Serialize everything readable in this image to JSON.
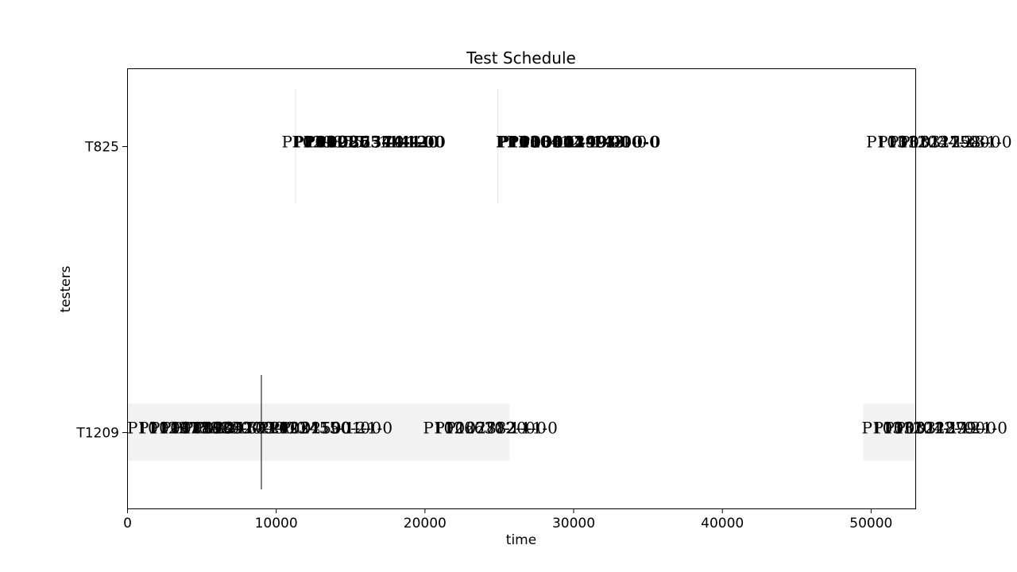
{
  "chart_data": {
    "type": "gantt",
    "title": "Test Schedule",
    "xlabel": "time",
    "ylabel": "testers",
    "xlim": [
      0,
      53000
    ],
    "x_ticks": [
      0,
      10000,
      20000,
      30000,
      40000,
      50000
    ],
    "x_tick_labels": [
      "0",
      "10000",
      "20000",
      "30000",
      "40000",
      "50000"
    ],
    "grid": false,
    "categories": [
      "T825",
      "T1209"
    ],
    "colors": {
      "bar_fill": "#f2f2f2",
      "marker": "#000000",
      "faint_marker": "#e6e6e6",
      "axes": "#000000"
    },
    "bars": [
      {
        "tester": "T1209",
        "start": 0,
        "end": 25700
      },
      {
        "tester": "T1209",
        "start": 49500,
        "end": 53000
      }
    ],
    "markers": [
      {
        "tester": "T1209",
        "x": 9000,
        "style": "solid"
      },
      {
        "tester": "T825",
        "x": 11300,
        "style": "faint"
      },
      {
        "tester": "T825",
        "x": 24900,
        "style": "faint"
      }
    ],
    "label_groups": [
      {
        "tester": "T825",
        "x": 10500,
        "bold": false,
        "labels": [
          "P10298551-1-0"
        ]
      },
      {
        "tester": "T825",
        "x": 11200,
        "bold": true,
        "labels": [
          "P1029875-1-1-0",
          "P1028654-4-2-0",
          "P1025374-1-0"
        ]
      },
      {
        "tester": "T825",
        "x": 24900,
        "bold": true,
        "labels": [
          "P1030412-1-0",
          "P1030419-4-0",
          "P1030449-3-0-0"
        ]
      },
      {
        "tester": "T825",
        "x": 25100,
        "bold": false,
        "labels": [
          "P1030412-493-1-0"
        ]
      },
      {
        "tester": "T825",
        "x": 49800,
        "bold": false,
        "labels": [
          "P1031203-1-0",
          "P1031244-2-0",
          "P1031275-3-0",
          "P1031298-1-0"
        ]
      },
      {
        "tester": "T1209",
        "x": 0,
        "bold": false,
        "labels": [
          "P1012277-1-0",
          "P1016738-2-0",
          "P1017742-1-0",
          "P1018830-3-0",
          "P1019052-1-0",
          "P1020477-2-0",
          "P1021103-1-0"
        ]
      },
      {
        "tester": "T1209",
        "x": 8900,
        "bold": false,
        "labels": [
          "P1023455-1-0",
          "P1024190-2-0",
          "P1025001-1-0"
        ]
      },
      {
        "tester": "T1209",
        "x": 20000,
        "bold": false,
        "labels": [
          "P1026630-1-0",
          "P1027712-1-0",
          "P1028820-1-0"
        ]
      },
      {
        "tester": "T1209",
        "x": 49500,
        "bold": false,
        "labels": [
          "P1031201-1-0",
          "P1031242-1-0",
          "P1031287-2-0",
          "P1031299-1-0"
        ]
      }
    ]
  }
}
